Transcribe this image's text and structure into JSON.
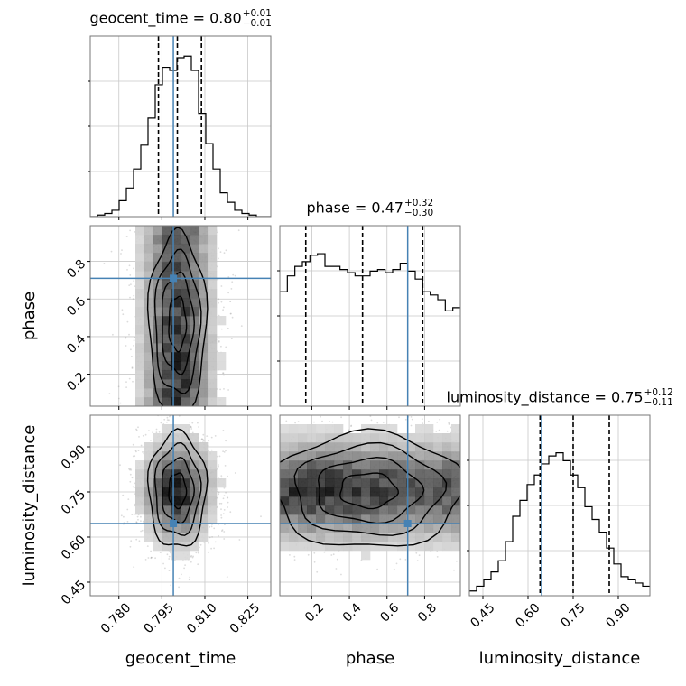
{
  "chart_data": {
    "type": "corner",
    "params": [
      "geocent_time",
      "phase",
      "luminosity_distance"
    ],
    "titles": [
      {
        "param": "geocent_time",
        "name": "geocent_time",
        "value": "0.80",
        "upper": "+0.01",
        "lower": "−0.01"
      },
      {
        "param": "phase",
        "name": "phase",
        "value": "0.47",
        "upper": "+0.32",
        "lower": "−0.30"
      },
      {
        "param": "luminosity_distance",
        "name": "luminosity_distance",
        "value": "0.75",
        "upper": "+0.12",
        "lower": "−0.11"
      }
    ],
    "ranges": {
      "geocent_time": [
        0.77,
        0.833
      ],
      "phase": [
        0.03,
        0.99
      ],
      "luminosity_distance": [
        0.405,
        1.005
      ]
    },
    "ticks": {
      "geocent_time": {
        "values": [
          0.78,
          0.795,
          0.81,
          0.825
        ],
        "labels": [
          "0.780",
          "0.795",
          "0.810",
          "0.825"
        ]
      },
      "phase": {
        "values": [
          0.2,
          0.4,
          0.6,
          0.8
        ],
        "labels": [
          "0.2",
          "0.4",
          "0.6",
          "0.8"
        ]
      },
      "luminosity_distance": {
        "values": [
          0.45,
          0.6,
          0.75,
          0.9
        ],
        "labels": [
          "0.45",
          "0.60",
          "0.75",
          "0.90"
        ]
      }
    },
    "truths": {
      "geocent_time": 0.799,
      "phase": 0.71,
      "luminosity_distance": 0.645
    },
    "quantiles": {
      "geocent_time": [
        0.7938,
        0.8004,
        0.8088
      ],
      "phase": [
        0.168,
        0.47,
        0.79
      ],
      "luminosity_distance": [
        0.64,
        0.75,
        0.87
      ]
    },
    "histograms": {
      "geocent_time": [
        0.0,
        0.01,
        0.02,
        0.04,
        0.1,
        0.18,
        0.3,
        0.45,
        0.62,
        0.83,
        0.94,
        0.92,
        1.0,
        1.01,
        0.92,
        0.65,
        0.46,
        0.3,
        0.15,
        0.09,
        0.04,
        0.02,
        0.01,
        0.0,
        0.0
      ],
      "phase": [
        0.72,
        0.82,
        0.88,
        0.91,
        0.95,
        0.96,
        0.88,
        0.88,
        0.86,
        0.84,
        0.82,
        0.82,
        0.85,
        0.86,
        0.84,
        0.86,
        0.9,
        0.85,
        0.8,
        0.72,
        0.7,
        0.67,
        0.6,
        0.62
      ],
      "luminosity_distance": [
        0.03,
        0.06,
        0.1,
        0.15,
        0.22,
        0.34,
        0.5,
        0.6,
        0.7,
        0.76,
        0.83,
        0.88,
        0.9,
        0.85,
        0.76,
        0.68,
        0.56,
        0.48,
        0.4,
        0.3,
        0.2,
        0.12,
        0.1,
        0.08,
        0.06
      ]
    },
    "axis_labels": {
      "geocent_time": "geocent_time",
      "phase": "phase",
      "luminosity_distance": "luminosity_distance"
    },
    "grid": true,
    "truth_color": "#4682b4",
    "contour_color": "#000000"
  }
}
